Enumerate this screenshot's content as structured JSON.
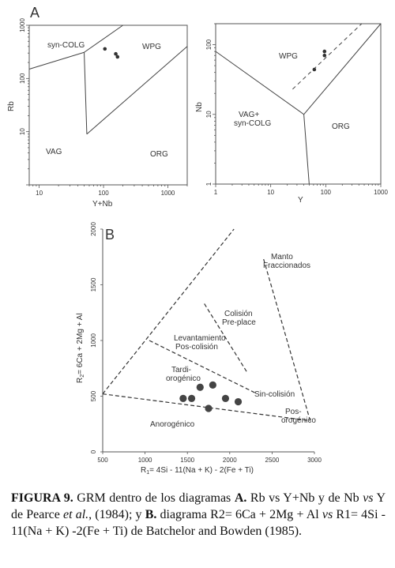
{
  "figure": {
    "panel_a_label": "A",
    "panel_b_label": "B"
  },
  "chart_data": [
    {
      "type": "scatter",
      "title": "",
      "xlabel": "Y+Nb",
      "ylabel": "Rb",
      "xscale": "log",
      "yscale": "log",
      "xlim": [
        7,
        2000
      ],
      "ylim": [
        1,
        1000
      ],
      "xticks": [
        "10",
        "100",
        "1000"
      ],
      "yticks": [
        "10",
        "100",
        "1000"
      ],
      "points": [
        {
          "x": 105,
          "y": 360
        },
        {
          "x": 155,
          "y": 290
        },
        {
          "x": 165,
          "y": 255
        }
      ],
      "boundaries": [
        {
          "x": [
            7,
            50
          ],
          "y": [
            150,
            310
          ]
        },
        {
          "x": [
            50,
            200
          ],
          "y": [
            310,
            1000
          ]
        },
        {
          "x": [
            50,
            55
          ],
          "y": [
            310,
            9
          ]
        },
        {
          "x": [
            55,
            2000
          ],
          "y": [
            9,
            400
          ]
        }
      ],
      "field_labels": [
        "syn-COLG",
        "WPG",
        "VAG",
        "ORG"
      ]
    },
    {
      "type": "scatter",
      "title": "",
      "xlabel": "Y",
      "ylabel": "Nb",
      "xscale": "log",
      "yscale": "log",
      "xlim": [
        1,
        1000
      ],
      "ylim": [
        1,
        200
      ],
      "xticks": [
        "1",
        "10",
        "100",
        "1000"
      ],
      "yticks": [
        "1",
        "10",
        "100"
      ],
      "points": [
        {
          "x": 95,
          "y": 80
        },
        {
          "x": 95,
          "y": 70
        },
        {
          "x": 62,
          "y": 44
        }
      ],
      "boundaries": [
        {
          "x": [
            1,
            40
          ],
          "y": [
            80,
            10
          ]
        },
        {
          "x": [
            40,
            1000
          ],
          "y": [
            10,
            200
          ]
        },
        {
          "x": [
            40,
            50
          ],
          "y": [
            10,
            1
          ]
        }
      ],
      "dashed_line": {
        "x": [
          25,
          450
        ],
        "y": [
          23,
          200
        ]
      },
      "field_labels": [
        "WPG",
        "VAG+\nsyn-COLG",
        "ORG"
      ]
    },
    {
      "type": "scatter",
      "title": "",
      "xlabel": "R1= 4Si - 11(Na + K) - 2(Fe + Ti)",
      "ylabel": "R2= 6Ca + 2Mg + Al",
      "xlim": [
        500,
        3000
      ],
      "ylim": [
        0,
        2000
      ],
      "xticks": [
        "500",
        "1000",
        "1500",
        "2000",
        "2500",
        "3000"
      ],
      "yticks": [
        "0",
        "500",
        "1000",
        "1500",
        "2000"
      ],
      "points": [
        {
          "x": 1450,
          "y": 480
        },
        {
          "x": 1550,
          "y": 480
        },
        {
          "x": 1650,
          "y": 580
        },
        {
          "x": 1800,
          "y": 600
        },
        {
          "x": 1750,
          "y": 390
        },
        {
          "x": 1950,
          "y": 480
        },
        {
          "x": 2100,
          "y": 450
        }
      ],
      "boundaries": [
        {
          "x": [
            500,
            2050
          ],
          "y": [
            520,
            2000
          ]
        },
        {
          "x": [
            500,
            2950
          ],
          "y": [
            520,
            280
          ]
        },
        {
          "x": [
            2400,
            2950
          ],
          "y": [
            1730,
            280
          ]
        },
        {
          "x": [
            1050,
            2300
          ],
          "y": [
            1000,
            530
          ]
        },
        {
          "x": [
            1700,
            2200
          ],
          "y": [
            1330,
            720
          ]
        }
      ],
      "field_labels": [
        "Manto\nFraccionados",
        "Colisión\nPre-place",
        "Levantamiento\nPos-colisión",
        "Tardi-\norogénico",
        "Sin-colisión",
        "Pos-\norogénico",
        "Anorogénico"
      ]
    }
  ],
  "caption": {
    "figure_number": "FIGURA 9.",
    "text_1": " GRM dentro de los diagramas ",
    "a": "A.",
    "text_2": " Rb vs Y+Nb y de Nb ",
    "vs_1": "vs",
    "text_3": " Y de Pearce ",
    "et_al": "et al.",
    "text_4": ", (1984); y ",
    "b": "B.",
    "text_5": " diagrama R2= 6Ca + 2Mg + Al ",
    "vs_2": "vs",
    "text_6": " R1= 4Si - 11(Na + K) -2(Fe + Ti) de Batchelor and Bowden (1985)."
  }
}
